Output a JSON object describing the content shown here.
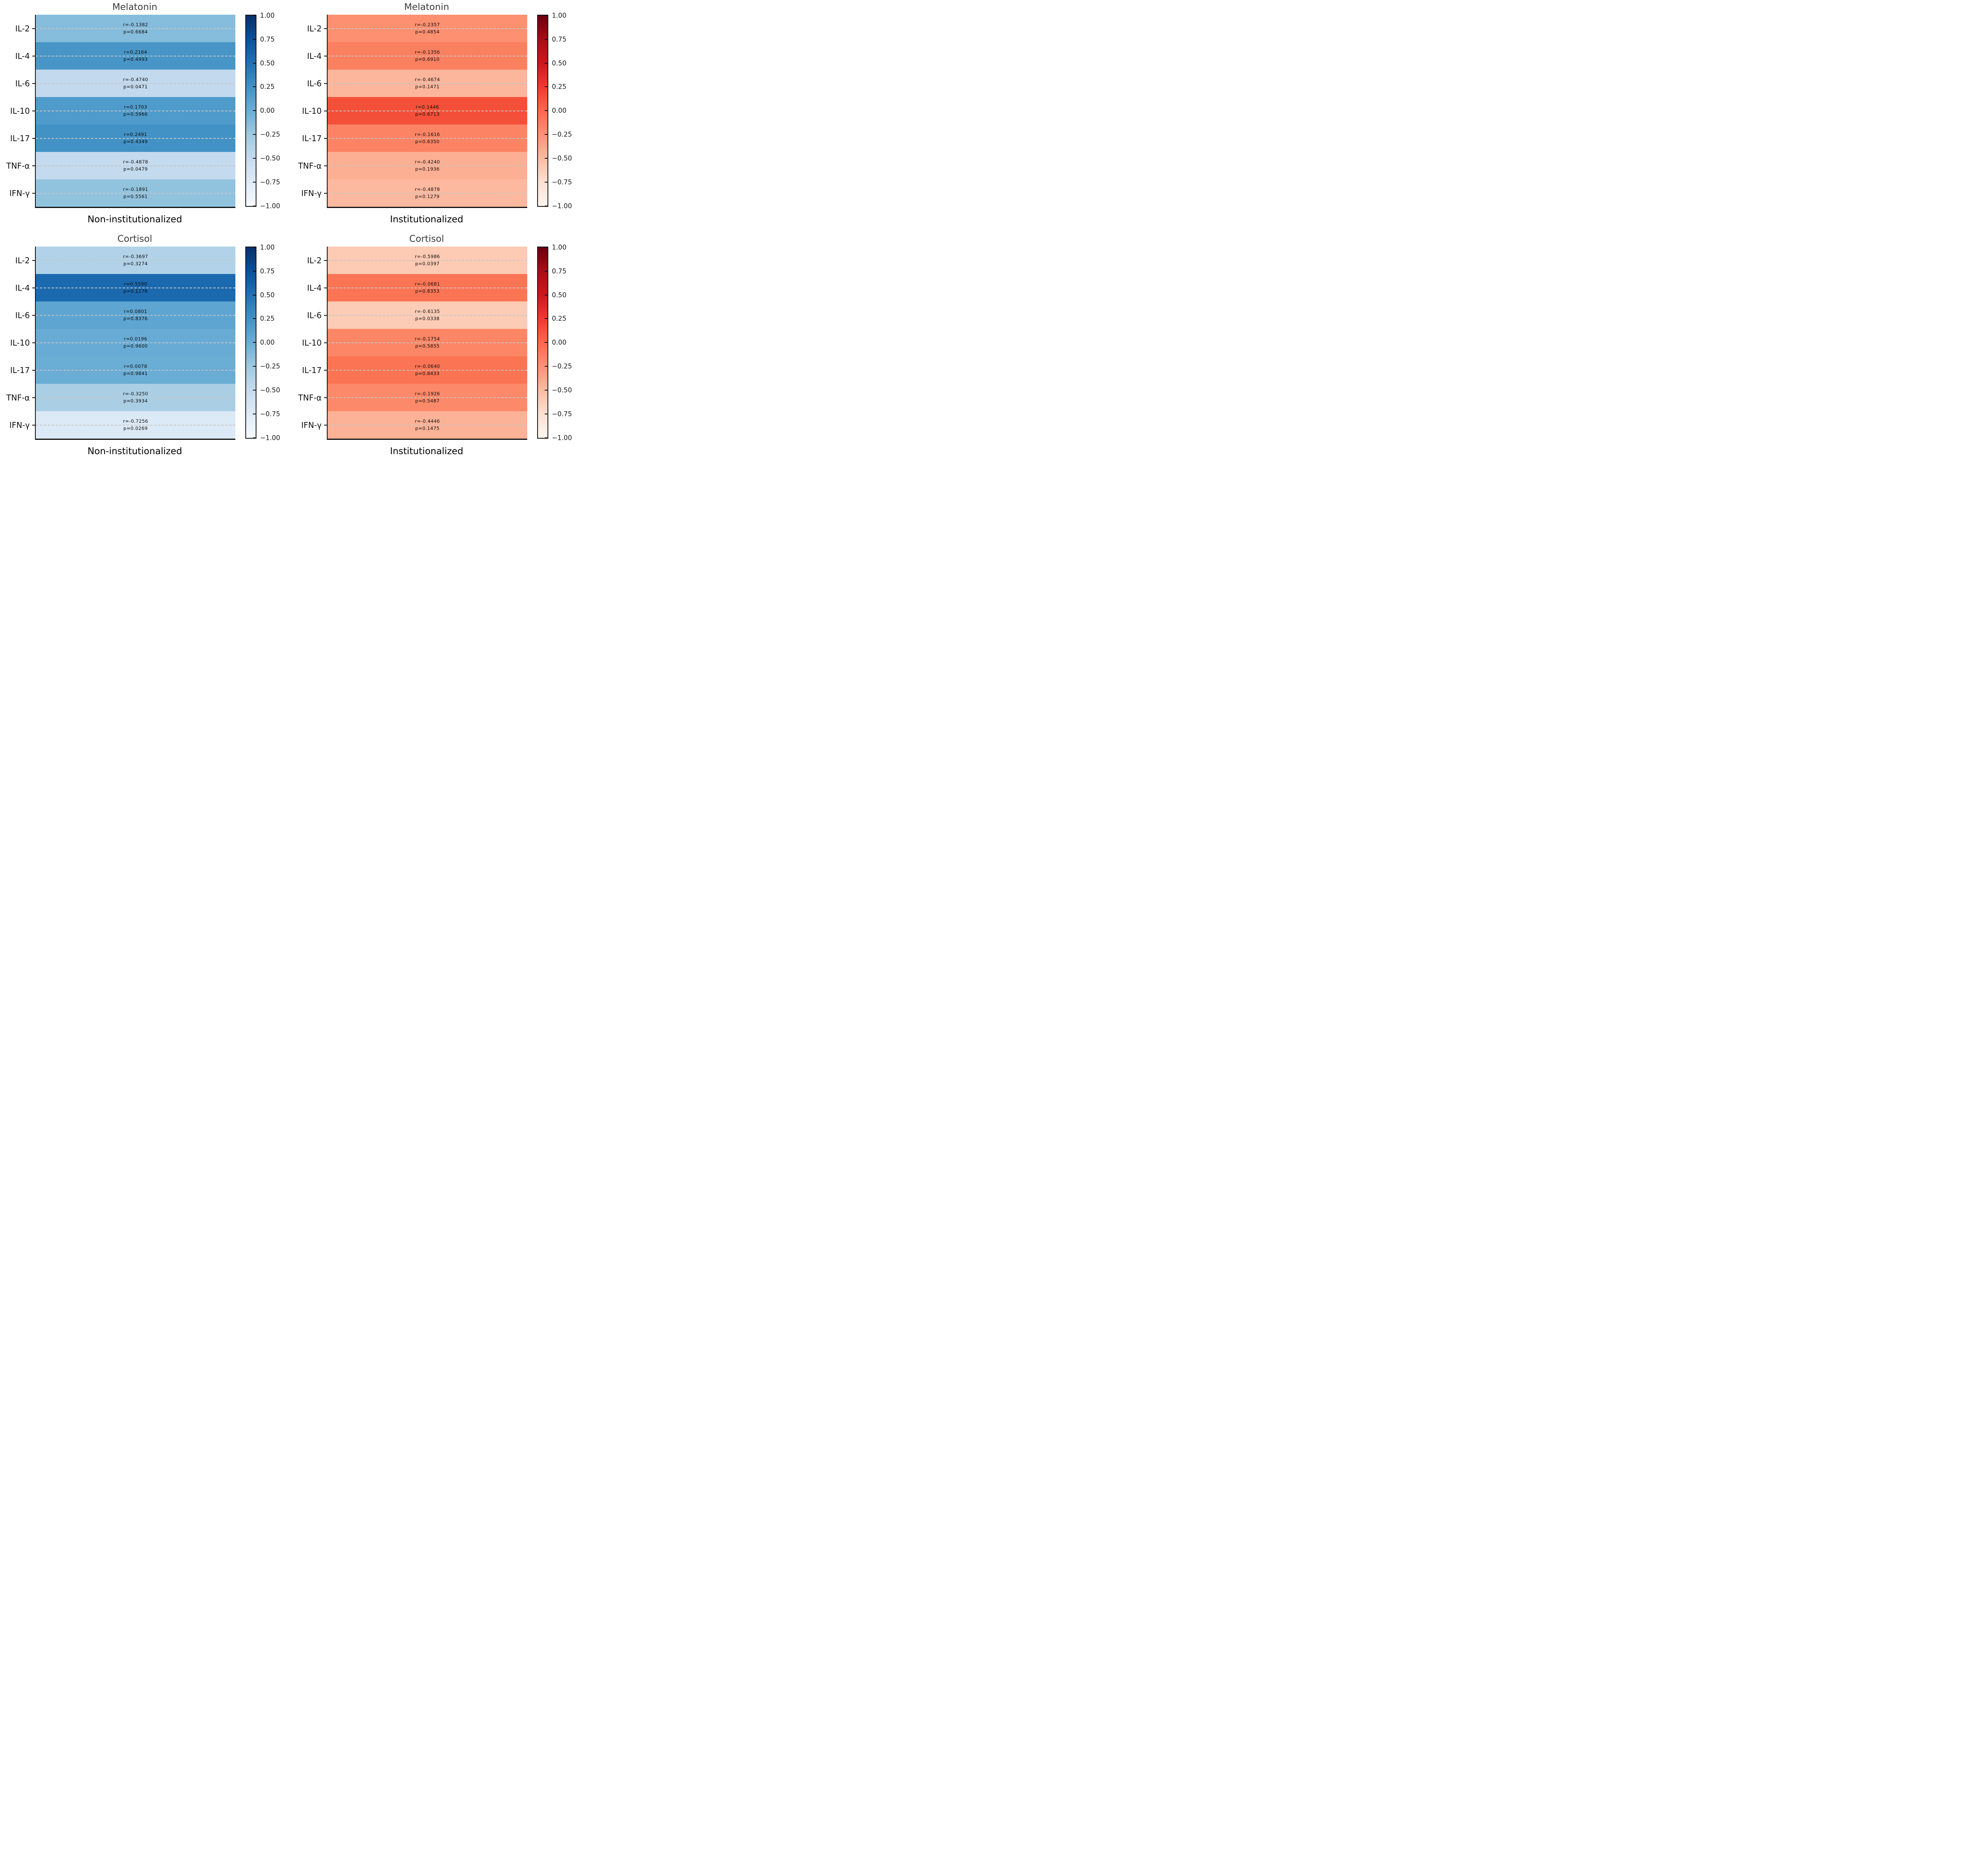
{
  "figure": {
    "row_labels": [
      "IL-2",
      "IL-4",
      "IL-6",
      "IL-10",
      "IL-17",
      "TNF-α",
      "IFN-γ"
    ],
    "colorbar_tick_labels": [
      "1.00",
      "0.75",
      "0.50",
      "0.25",
      "0.00",
      "−0.25",
      "−0.50",
      "−0.75",
      "−1.00"
    ],
    "colorbar_range": [
      -1,
      1
    ],
    "colormap_stops": {
      "Blues": [
        "#08306b",
        "#08519c",
        "#2171b5",
        "#4292c6",
        "#6baed6",
        "#9ecae1",
        "#c6dbef",
        "#deebf7",
        "#f7fbff"
      ],
      "Reds": [
        "#67000d",
        "#a50f15",
        "#cb181d",
        "#ef3b2c",
        "#fb6a4a",
        "#fc9272",
        "#fcbba1",
        "#fee0d2",
        "#fff5f0"
      ]
    },
    "gridline_color": "#c6c6c6",
    "title_color": "#3a3a3a"
  },
  "chart_data": [
    {
      "type": "heatmap",
      "title": "Melatonin",
      "xlabel": "Non-institutionalized",
      "colormap": "Blues",
      "value_range": [
        -1,
        1
      ],
      "categories": [
        "IL-2",
        "IL-4",
        "IL-6",
        "IL-10",
        "IL-17",
        "TNF-α",
        "IFN-γ"
      ],
      "rows": [
        {
          "label": "IL-2",
          "r": "-0.1382",
          "p": "0.6684",
          "color": "#87bddc"
        },
        {
          "label": "IL-4",
          "r": "0.2164",
          "p": "0.4993",
          "color": "#4896c8"
        },
        {
          "label": "IL-6",
          "r": "-0.4740",
          "p": "0.0471",
          "color": "#c2d9ee"
        },
        {
          "label": "IL-10",
          "r": "0.1703",
          "p": "0.5966",
          "color": "#4f9bcb"
        },
        {
          "label": "IL-17",
          "r": "0.2491",
          "p": "0.4349",
          "color": "#4292c6"
        },
        {
          "label": "TNF-α",
          "r": "-0.4878",
          "p": "0.0479",
          "color": "#c4daee"
        },
        {
          "label": "IFN-γ",
          "r": "-0.1891",
          "p": "0.5561",
          "color": "#92c3de"
        }
      ]
    },
    {
      "type": "heatmap",
      "title": "Melatonin",
      "xlabel": "Institutionalized",
      "colormap": "Reds",
      "value_range": [
        -1,
        1
      ],
      "categories": [
        "IL-2",
        "IL-4",
        "IL-6",
        "IL-10",
        "IL-17",
        "TNF-α",
        "IFN-γ"
      ],
      "rows": [
        {
          "label": "IL-2",
          "r": "-0.2357",
          "p": "0.4854",
          "color": "#fc9070"
        },
        {
          "label": "IL-4",
          "r": "-0.1356",
          "p": "0.6910",
          "color": "#fb8060"
        },
        {
          "label": "IL-6",
          "r": "-0.4674",
          "p": "0.1471",
          "color": "#fcb69b"
        },
        {
          "label": "IL-10",
          "r": "0.1446",
          "p": "0.6713",
          "color": "#f44f39"
        },
        {
          "label": "IL-17",
          "r": "-0.1616",
          "p": "0.6350",
          "color": "#fc8464"
        },
        {
          "label": "TNF-α",
          "r": "-0.4240",
          "p": "0.1936",
          "color": "#fcaf93"
        },
        {
          "label": "IFN-γ",
          "r": "-0.4878",
          "p": "0.1279",
          "color": "#fcb99f"
        }
      ]
    },
    {
      "type": "heatmap",
      "title": "Cortisol",
      "xlabel": "Non-institutionalized",
      "colormap": "Blues",
      "value_range": [
        -1,
        1
      ],
      "categories": [
        "IL-2",
        "IL-4",
        "IL-6",
        "IL-10",
        "IL-17",
        "TNF-α",
        "IFN-γ"
      ],
      "rows": [
        {
          "label": "IL-2",
          "r": "-0.3697",
          "p": "0.3274",
          "color": "#b1d2e8"
        },
        {
          "label": "IL-4",
          "r": "0.5590",
          "p": "0.1176",
          "color": "#1b69af"
        },
        {
          "label": "IL-6",
          "r": "0.0801",
          "p": "0.8376",
          "color": "#5ea5d1"
        },
        {
          "label": "IL-10",
          "r": "0.0196",
          "p": "0.9600",
          "color": "#68acd5"
        },
        {
          "label": "IL-17",
          "r": "0.0078",
          "p": "0.9841",
          "color": "#6aadd5"
        },
        {
          "label": "TNF-α",
          "r": "-0.3250",
          "p": "0.3934",
          "color": "#aacfe5"
        },
        {
          "label": "IFN-γ",
          "r": "-0.7256",
          "p": "0.0269",
          "color": "#dce9f6"
        }
      ]
    },
    {
      "type": "heatmap",
      "title": "Cortisol",
      "xlabel": "Institutionalized",
      "colormap": "Reds",
      "value_range": [
        -1,
        1
      ],
      "categories": [
        "IL-2",
        "IL-4",
        "IL-6",
        "IL-10",
        "IL-17",
        "TNF-α",
        "IFN-γ"
      ],
      "rows": [
        {
          "label": "IL-2",
          "r": "-0.5986",
          "p": "0.0397",
          "color": "#fdcab4"
        },
        {
          "label": "IL-4",
          "r": "-0.0681",
          "p": "0.8353",
          "color": "#fb7555"
        },
        {
          "label": "IL-6",
          "r": "-0.6135",
          "p": "0.0338",
          "color": "#fdccb7"
        },
        {
          "label": "IL-10",
          "r": "-0.1754",
          "p": "0.5855",
          "color": "#fc8666"
        },
        {
          "label": "IL-17",
          "r": "-0.0640",
          "p": "0.8433",
          "color": "#fb7454"
        },
        {
          "label": "TNF-α",
          "r": "-0.1926",
          "p": "0.5487",
          "color": "#fc8969"
        },
        {
          "label": "IFN-γ",
          "r": "-0.4446",
          "p": "0.1475",
          "color": "#fcb297"
        }
      ]
    }
  ]
}
